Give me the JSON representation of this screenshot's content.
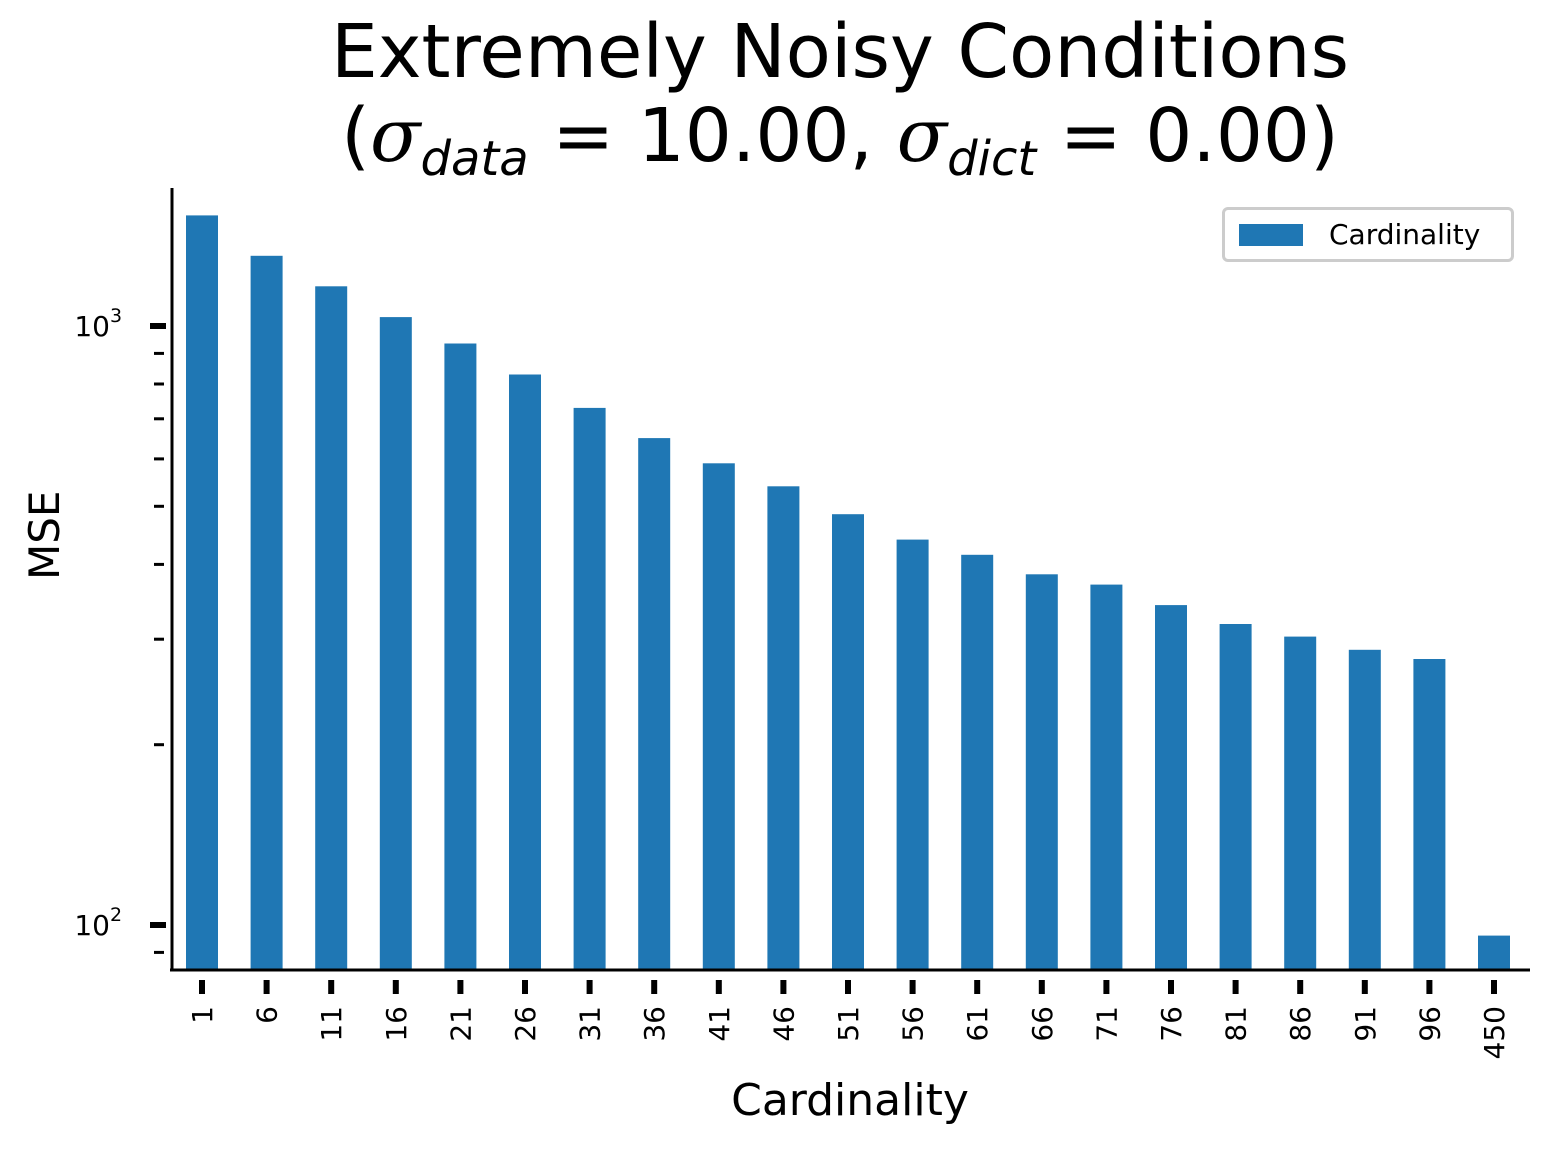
{
  "chart_data": {
    "type": "bar",
    "title": "Extremely Noisy Conditions",
    "title_formula": {
      "prefix": "(",
      "sigma1_sub": "data",
      "value1": "= 10.00,",
      "sigma2_sub": "dict",
      "value2": "= 0.00)"
    },
    "xlabel": "Cardinality",
    "ylabel": "MSE",
    "yscale": "log",
    "ylim": [
      90,
      1650
    ],
    "yticks": [
      {
        "value": 100,
        "label_base": "10",
        "label_exp": "2"
      },
      {
        "value": 1000,
        "label_base": "10",
        "label_exp": "3"
      }
    ],
    "categories": [
      "1",
      "6",
      "11",
      "16",
      "21",
      "26",
      "31",
      "36",
      "41",
      "46",
      "51",
      "56",
      "61",
      "66",
      "71",
      "76",
      "81",
      "86",
      "91",
      "96",
      "450"
    ],
    "series": [
      {
        "name": "Cardinality",
        "color": "#1f77b4",
        "values": [
          1530,
          1310,
          1165,
          1035,
          935,
          830,
          730,
          650,
          590,
          540,
          485,
          440,
          415,
          385,
          370,
          342,
          318,
          303,
          288,
          278,
          96
        ]
      }
    ],
    "legend": {
      "position": "top-right",
      "label": "Cardinality"
    },
    "grid": false
  }
}
